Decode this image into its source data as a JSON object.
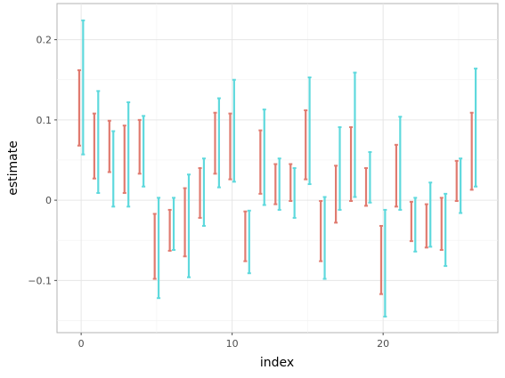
{
  "chart_data": {
    "type": "errorbar",
    "xlabel": "index",
    "ylabel": "estimate",
    "xlim": [
      -1.6,
      27.6
    ],
    "ylim": [
      -0.165,
      0.245
    ],
    "x_ticks": [
      0,
      10,
      20
    ],
    "x_tick_labels": [
      "0",
      "10",
      "20"
    ],
    "y_ticks": [
      -0.1,
      0,
      0.1,
      0.2
    ],
    "y_tick_labels": [
      "−0.1",
      "0",
      "0.1",
      "0.2"
    ],
    "grid": true,
    "series": [
      {
        "color": "#e07b70",
        "x_offset": -0.13,
        "intervals": [
          [
            0.068,
            0.162
          ],
          [
            0.027,
            0.108
          ],
          [
            0.035,
            0.099
          ],
          [
            0.009,
            0.093
          ],
          [
            0.033,
            0.1
          ],
          [
            -0.098,
            -0.017
          ],
          [
            -0.063,
            -0.012
          ],
          [
            -0.07,
            0.015
          ],
          [
            -0.022,
            0.04
          ],
          [
            0.033,
            0.109
          ],
          [
            0.026,
            0.108
          ],
          [
            -0.076,
            -0.014
          ],
          [
            0.008,
            0.087
          ],
          [
            -0.005,
            0.045
          ],
          [
            -0.001,
            0.045
          ],
          [
            0.026,
            0.112
          ],
          [
            -0.076,
            -0.001
          ],
          [
            -0.028,
            0.043
          ],
          [
            -0.001,
            0.091
          ],
          [
            -0.007,
            0.04
          ],
          [
            -0.117,
            -0.032
          ],
          [
            -0.008,
            0.069
          ],
          [
            -0.051,
            -0.002
          ],
          [
            -0.059,
            -0.005
          ],
          [
            -0.062,
            0.003
          ],
          [
            -0.001,
            0.049
          ],
          [
            0.013,
            0.109
          ]
        ]
      },
      {
        "color": "#5fd9dd",
        "x_offset": 0.13,
        "intervals": [
          [
            0.057,
            0.224
          ],
          [
            0.009,
            0.136
          ],
          [
            -0.008,
            0.086
          ],
          [
            -0.008,
            0.122
          ],
          [
            0.017,
            0.105
          ],
          [
            -0.122,
            0.003
          ],
          [
            -0.062,
            0.003
          ],
          [
            -0.096,
            0.032
          ],
          [
            -0.032,
            0.052
          ],
          [
            0.016,
            0.127
          ],
          [
            0.023,
            0.15
          ],
          [
            -0.091,
            -0.013
          ],
          [
            -0.006,
            0.113
          ],
          [
            -0.012,
            0.052
          ],
          [
            -0.022,
            0.04
          ],
          [
            0.02,
            0.153
          ],
          [
            -0.098,
            0.004
          ],
          [
            -0.012,
            0.091
          ],
          [
            0.004,
            0.159
          ],
          [
            -0.003,
            0.06
          ],
          [
            -0.145,
            -0.012
          ],
          [
            -0.012,
            0.104
          ],
          [
            -0.064,
            0.003
          ],
          [
            -0.058,
            0.022
          ],
          [
            -0.082,
            0.008
          ],
          [
            -0.016,
            0.052
          ],
          [
            0.017,
            0.164
          ]
        ]
      }
    ]
  }
}
